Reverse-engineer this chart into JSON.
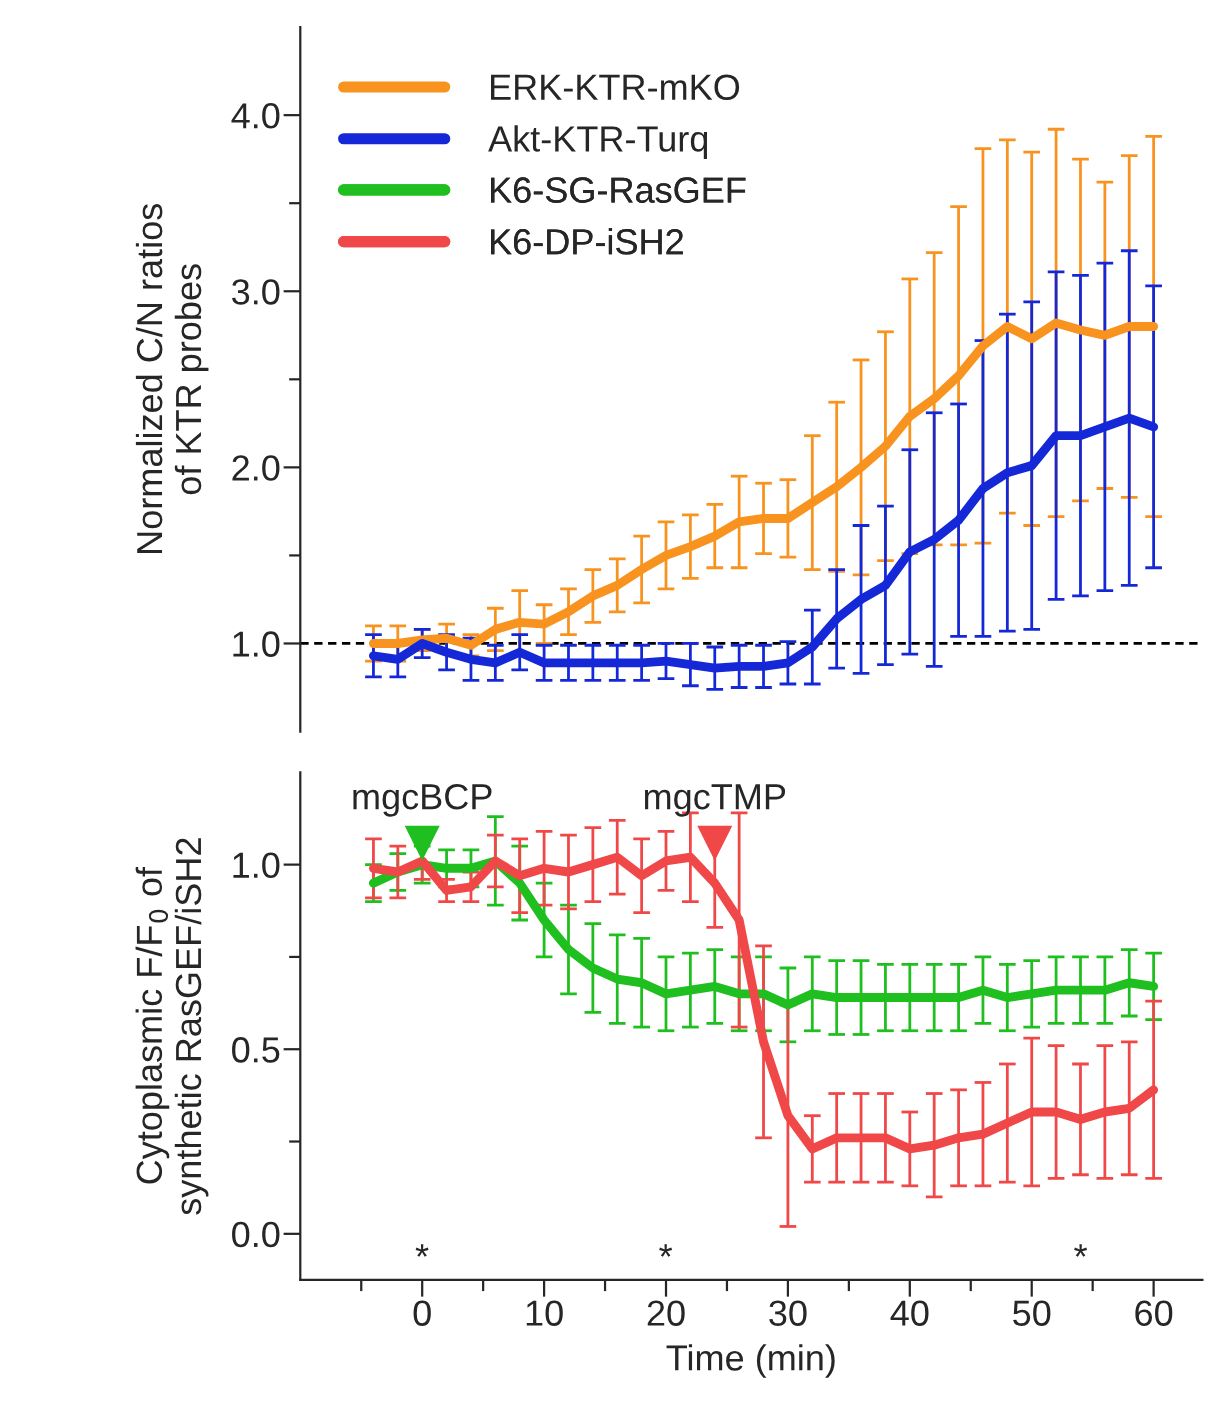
{
  "chart_data": [
    {
      "type": "line",
      "ylabel": "Normalized C/N ratios\nof KTR probes",
      "x": [
        -4,
        -2,
        0,
        2,
        4,
        6,
        8,
        10,
        12,
        14,
        16,
        18,
        20,
        22,
        24,
        26,
        28,
        30,
        32,
        34,
        36,
        38,
        40,
        42,
        44,
        46,
        48,
        50,
        52,
        54,
        56,
        58,
        60
      ],
      "xlim": [
        -10,
        64
      ],
      "ylim": [
        0.5,
        4.5
      ],
      "yticks": [
        {
          "value": 1.0,
          "label": "1.0"
        },
        {
          "value": 1.5,
          "label": null
        },
        {
          "value": 2.0,
          "label": "2.0"
        },
        {
          "value": 2.5,
          "label": null
        },
        {
          "value": 3.0,
          "label": "3.0"
        },
        {
          "value": 3.5,
          "label": null
        },
        {
          "value": 4.0,
          "label": "4.0"
        }
      ],
      "tick_labels": "y",
      "legend": "top left",
      "grid": false,
      "marker": "none",
      "line_style": "solid",
      "ref_lines": [
        {
          "axis": "y",
          "value": 1.0,
          "color": "#000000",
          "line_style": "dashed"
        }
      ],
      "series": [
        {
          "name": "ERK-KTR-mKO",
          "color": "#f7931e",
          "values": [
            1.0,
            1.0,
            1.02,
            1.03,
            0.99,
            1.08,
            1.12,
            1.11,
            1.18,
            1.27,
            1.33,
            1.42,
            1.5,
            1.55,
            1.61,
            1.69,
            1.71,
            1.71,
            1.8,
            1.89,
            2.0,
            2.12,
            2.29,
            2.39,
            2.52,
            2.69,
            2.8,
            2.73,
            2.82,
            2.78,
            2.75,
            2.8,
            2.8
          ],
          "errors": [
            0.1,
            0.1,
            0.06,
            0.08,
            0.06,
            0.12,
            0.18,
            0.11,
            0.13,
            0.15,
            0.15,
            0.19,
            0.19,
            0.18,
            0.18,
            0.26,
            0.2,
            0.22,
            0.38,
            0.48,
            0.61,
            0.65,
            0.78,
            0.83,
            0.96,
            1.12,
            1.06,
            1.06,
            1.1,
            0.97,
            0.87,
            0.97,
            1.08
          ]
        },
        {
          "name": "Akt-KTR-Turq",
          "color": "#1428d8",
          "values": [
            0.93,
            0.91,
            1.0,
            0.95,
            0.91,
            0.89,
            0.95,
            0.89,
            0.89,
            0.89,
            0.89,
            0.89,
            0.9,
            0.88,
            0.86,
            0.87,
            0.87,
            0.89,
            0.98,
            1.14,
            1.25,
            1.33,
            1.52,
            1.59,
            1.7,
            1.88,
            1.97,
            2.01,
            2.18,
            2.18,
            2.23,
            2.28,
            2.23
          ],
          "errors": [
            0.12,
            0.1,
            0.08,
            0.1,
            0.12,
            0.1,
            0.1,
            0.1,
            0.1,
            0.1,
            0.1,
            0.1,
            0.1,
            0.12,
            0.12,
            0.12,
            0.12,
            0.12,
            0.21,
            0.28,
            0.42,
            0.45,
            0.58,
            0.72,
            0.66,
            0.84,
            0.9,
            0.93,
            0.93,
            0.91,
            0.93,
            0.95,
            0.8
          ]
        }
      ]
    },
    {
      "type": "line",
      "ylabel": "Cytoplasmic F/F$_{0}$ of\nsynthetic RasGEF/iSH2",
      "xlabel": "Time (min)",
      "x": [
        -4,
        -2,
        0,
        2,
        4,
        6,
        8,
        10,
        12,
        14,
        16,
        18,
        20,
        22,
        24,
        26,
        28,
        30,
        32,
        34,
        36,
        38,
        40,
        42,
        44,
        46,
        48,
        50,
        52,
        54,
        56,
        58,
        60
      ],
      "xlim": [
        -10,
        64
      ],
      "ylim": [
        -0.125,
        1.25
      ],
      "xticks": [
        {
          "value": -5,
          "label": null
        },
        0,
        {
          "value": 5,
          "label": null
        },
        10,
        {
          "value": 15,
          "label": null
        },
        20,
        {
          "value": 25,
          "label": null
        },
        30,
        {
          "value": 35,
          "label": null
        },
        40,
        {
          "value": 45,
          "label": null
        },
        50,
        {
          "value": 55,
          "label": null
        },
        60
      ],
      "yticks": [
        {
          "value": 0.0,
          "label": "0.0"
        },
        {
          "value": 0.25,
          "label": null
        },
        {
          "value": 0.5,
          "label": "0.5"
        },
        {
          "value": 0.75,
          "label": null
        },
        {
          "value": 1.0,
          "label": "1.0"
        }
      ],
      "grid": false,
      "marker": "none",
      "line_style": "solid",
      "annotations": [
        {
          "text": "mgcBCP",
          "x": 0,
          "y": 1.03
        },
        {
          "text": "mgcTMP",
          "x": 24,
          "y": 1.03
        },
        "*",
        "*",
        "*"
      ],
      "legend": "top left",
      "series": [
        {
          "name": "K6-SG-RasGEF",
          "color": "#1fbf1f",
          "values": [
            0.95,
            0.98,
            1.0,
            0.99,
            0.99,
            1.01,
            0.95,
            0.85,
            0.77,
            0.72,
            0.69,
            0.68,
            0.65,
            0.66,
            0.67,
            0.65,
            0.65,
            0.62,
            0.65,
            0.64,
            0.64,
            0.64,
            0.64,
            0.64,
            0.64,
            0.66,
            0.64,
            0.65,
            0.66,
            0.66,
            0.66,
            0.68,
            0.67
          ],
          "errors": [
            0.05,
            0.05,
            0.05,
            0.05,
            0.05,
            0.12,
            0.1,
            0.1,
            0.12,
            0.12,
            0.12,
            0.12,
            0.1,
            0.1,
            0.1,
            0.1,
            0.1,
            0.1,
            0.1,
            0.1,
            0.1,
            0.09,
            0.09,
            0.09,
            0.09,
            0.09,
            0.09,
            0.09,
            0.09,
            0.09,
            0.09,
            0.09,
            0.09
          ]
        },
        {
          "name": "K6-DP-iSH2",
          "color": "#f04848",
          "values": [
            0.99,
            0.98,
            1.01,
            0.93,
            0.94,
            1.01,
            0.97,
            0.99,
            0.98,
            1.0,
            1.02,
            0.97,
            1.01,
            1.02,
            0.95,
            0.85,
            0.52,
            0.32,
            0.23,
            0.26,
            0.26,
            0.26,
            0.23,
            0.24,
            0.26,
            0.27,
            0.3,
            0.33,
            0.33,
            0.31,
            0.33,
            0.34,
            0.39
          ],
          "errors": [
            0.08,
            0.07,
            0.05,
            0.03,
            0.04,
            0.07,
            0.1,
            0.1,
            0.1,
            0.1,
            0.1,
            0.1,
            0.08,
            0.12,
            0.12,
            0.29,
            0.26,
            0.3,
            0.09,
            0.12,
            0.12,
            0.12,
            0.1,
            0.14,
            0.13,
            0.14,
            0.16,
            0.2,
            0.18,
            0.15,
            0.18,
            0.18,
            0.24
          ]
        }
      ]
    }
  ]
}
